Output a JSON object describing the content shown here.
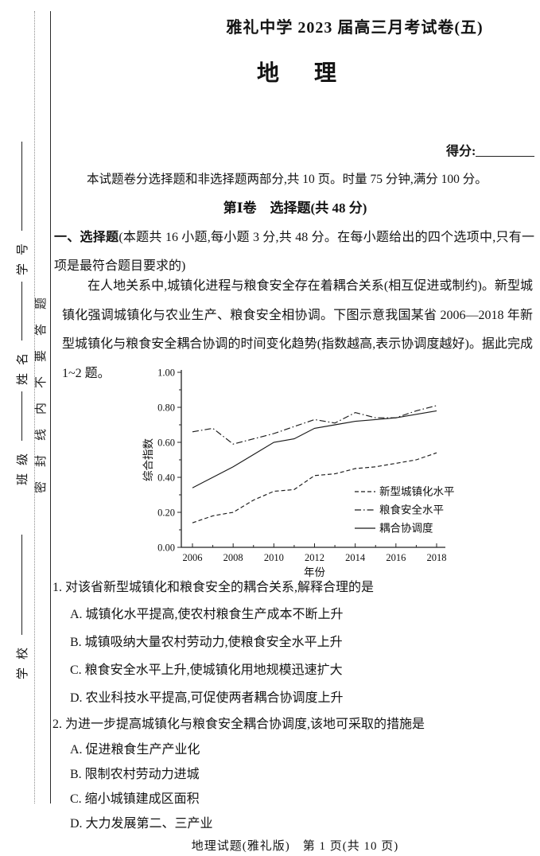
{
  "page": {
    "exam_title": "雅礼中学 2023 届高三月考试卷(五)",
    "subject_title": "地　理",
    "score_label": "得分:",
    "intro": "本试题卷分选择题和非选择题两部分,共 10 页。时量 75 分钟,满分 100 分。",
    "section1_title": "第Ⅰ卷　选择题(共 48 分)",
    "part1_label": "一、选择题",
    "part1_desc": "(本题共 16 小题,每小题 3 分,共 48 分。在每小题给出的四个选项中,只有一项是最符合题目要求的)",
    "passage": "在人地关系中,城镇化进程与粮食安全存在着耦合关系(相互促进或制约)。新型城镇化强调城镇化与农业生产、粮食安全相协调。下图示意我国某省 2006—2018 年新型城镇化与粮食安全耦合协调的时间变化趋势(指数越高,表示协调度越好)。据此完成 1~2 题。",
    "footer": "地理试题(雅礼版)　第 1 页(共 10 页)"
  },
  "margin": {
    "seal_text": "密封线内不要答题",
    "fields": [
      {
        "label": "学号"
      },
      {
        "label": "姓名"
      },
      {
        "label": "班级"
      },
      {
        "label": "学校"
      }
    ]
  },
  "questions": [
    {
      "number": "1.",
      "stem": "对该省新型城镇化和粮食安全的耦合关系,解释合理的是",
      "options": [
        "A. 城镇化水平提高,使农村粮食生产成本不断上升",
        "B. 城镇吸纳大量农村劳动力,使粮食安全水平上升",
        "C. 粮食安全水平上升,使城镇化用地规模迅速扩大",
        "D. 农业科技水平提高,可促使两者耦合协调度上升"
      ]
    },
    {
      "number": "2.",
      "stem": "为进一步提高城镇化与粮食安全耦合协调度,该地可采取的措施是",
      "options": [
        "A. 促进粮食生产产业化",
        "B. 限制农村劳动力进城",
        "C. 缩小城镇建成区面积",
        "D. 大力发展第二、三产业"
      ]
    }
  ],
  "chart_data": {
    "type": "line",
    "x": [
      2006,
      2007,
      2008,
      2009,
      2010,
      2011,
      2012,
      2013,
      2014,
      2015,
      2016,
      2017,
      2018
    ],
    "series": [
      {
        "name": "新型城镇化水平",
        "style": "dashed",
        "values": [
          0.14,
          0.18,
          0.2,
          0.27,
          0.32,
          0.33,
          0.41,
          0.42,
          0.45,
          0.46,
          0.48,
          0.5,
          0.54
        ]
      },
      {
        "name": "粮食安全水平",
        "style": "dashdot",
        "values": [
          0.66,
          0.68,
          0.59,
          0.62,
          0.65,
          0.69,
          0.73,
          0.71,
          0.77,
          0.74,
          0.74,
          0.78,
          0.81
        ]
      },
      {
        "name": "耦合协调度",
        "style": "solid",
        "values": [
          0.34,
          0.4,
          0.46,
          0.53,
          0.6,
          0.62,
          0.68,
          0.7,
          0.72,
          0.73,
          0.74,
          0.76,
          0.78
        ]
      }
    ],
    "xlabel": "年份",
    "ylabel": "综合指数",
    "ylim": [
      0,
      1
    ],
    "ytick_step": 0.2,
    "xtick_labeled_step": 2,
    "grid": false,
    "legend_position": "inside-right-bottom"
  }
}
